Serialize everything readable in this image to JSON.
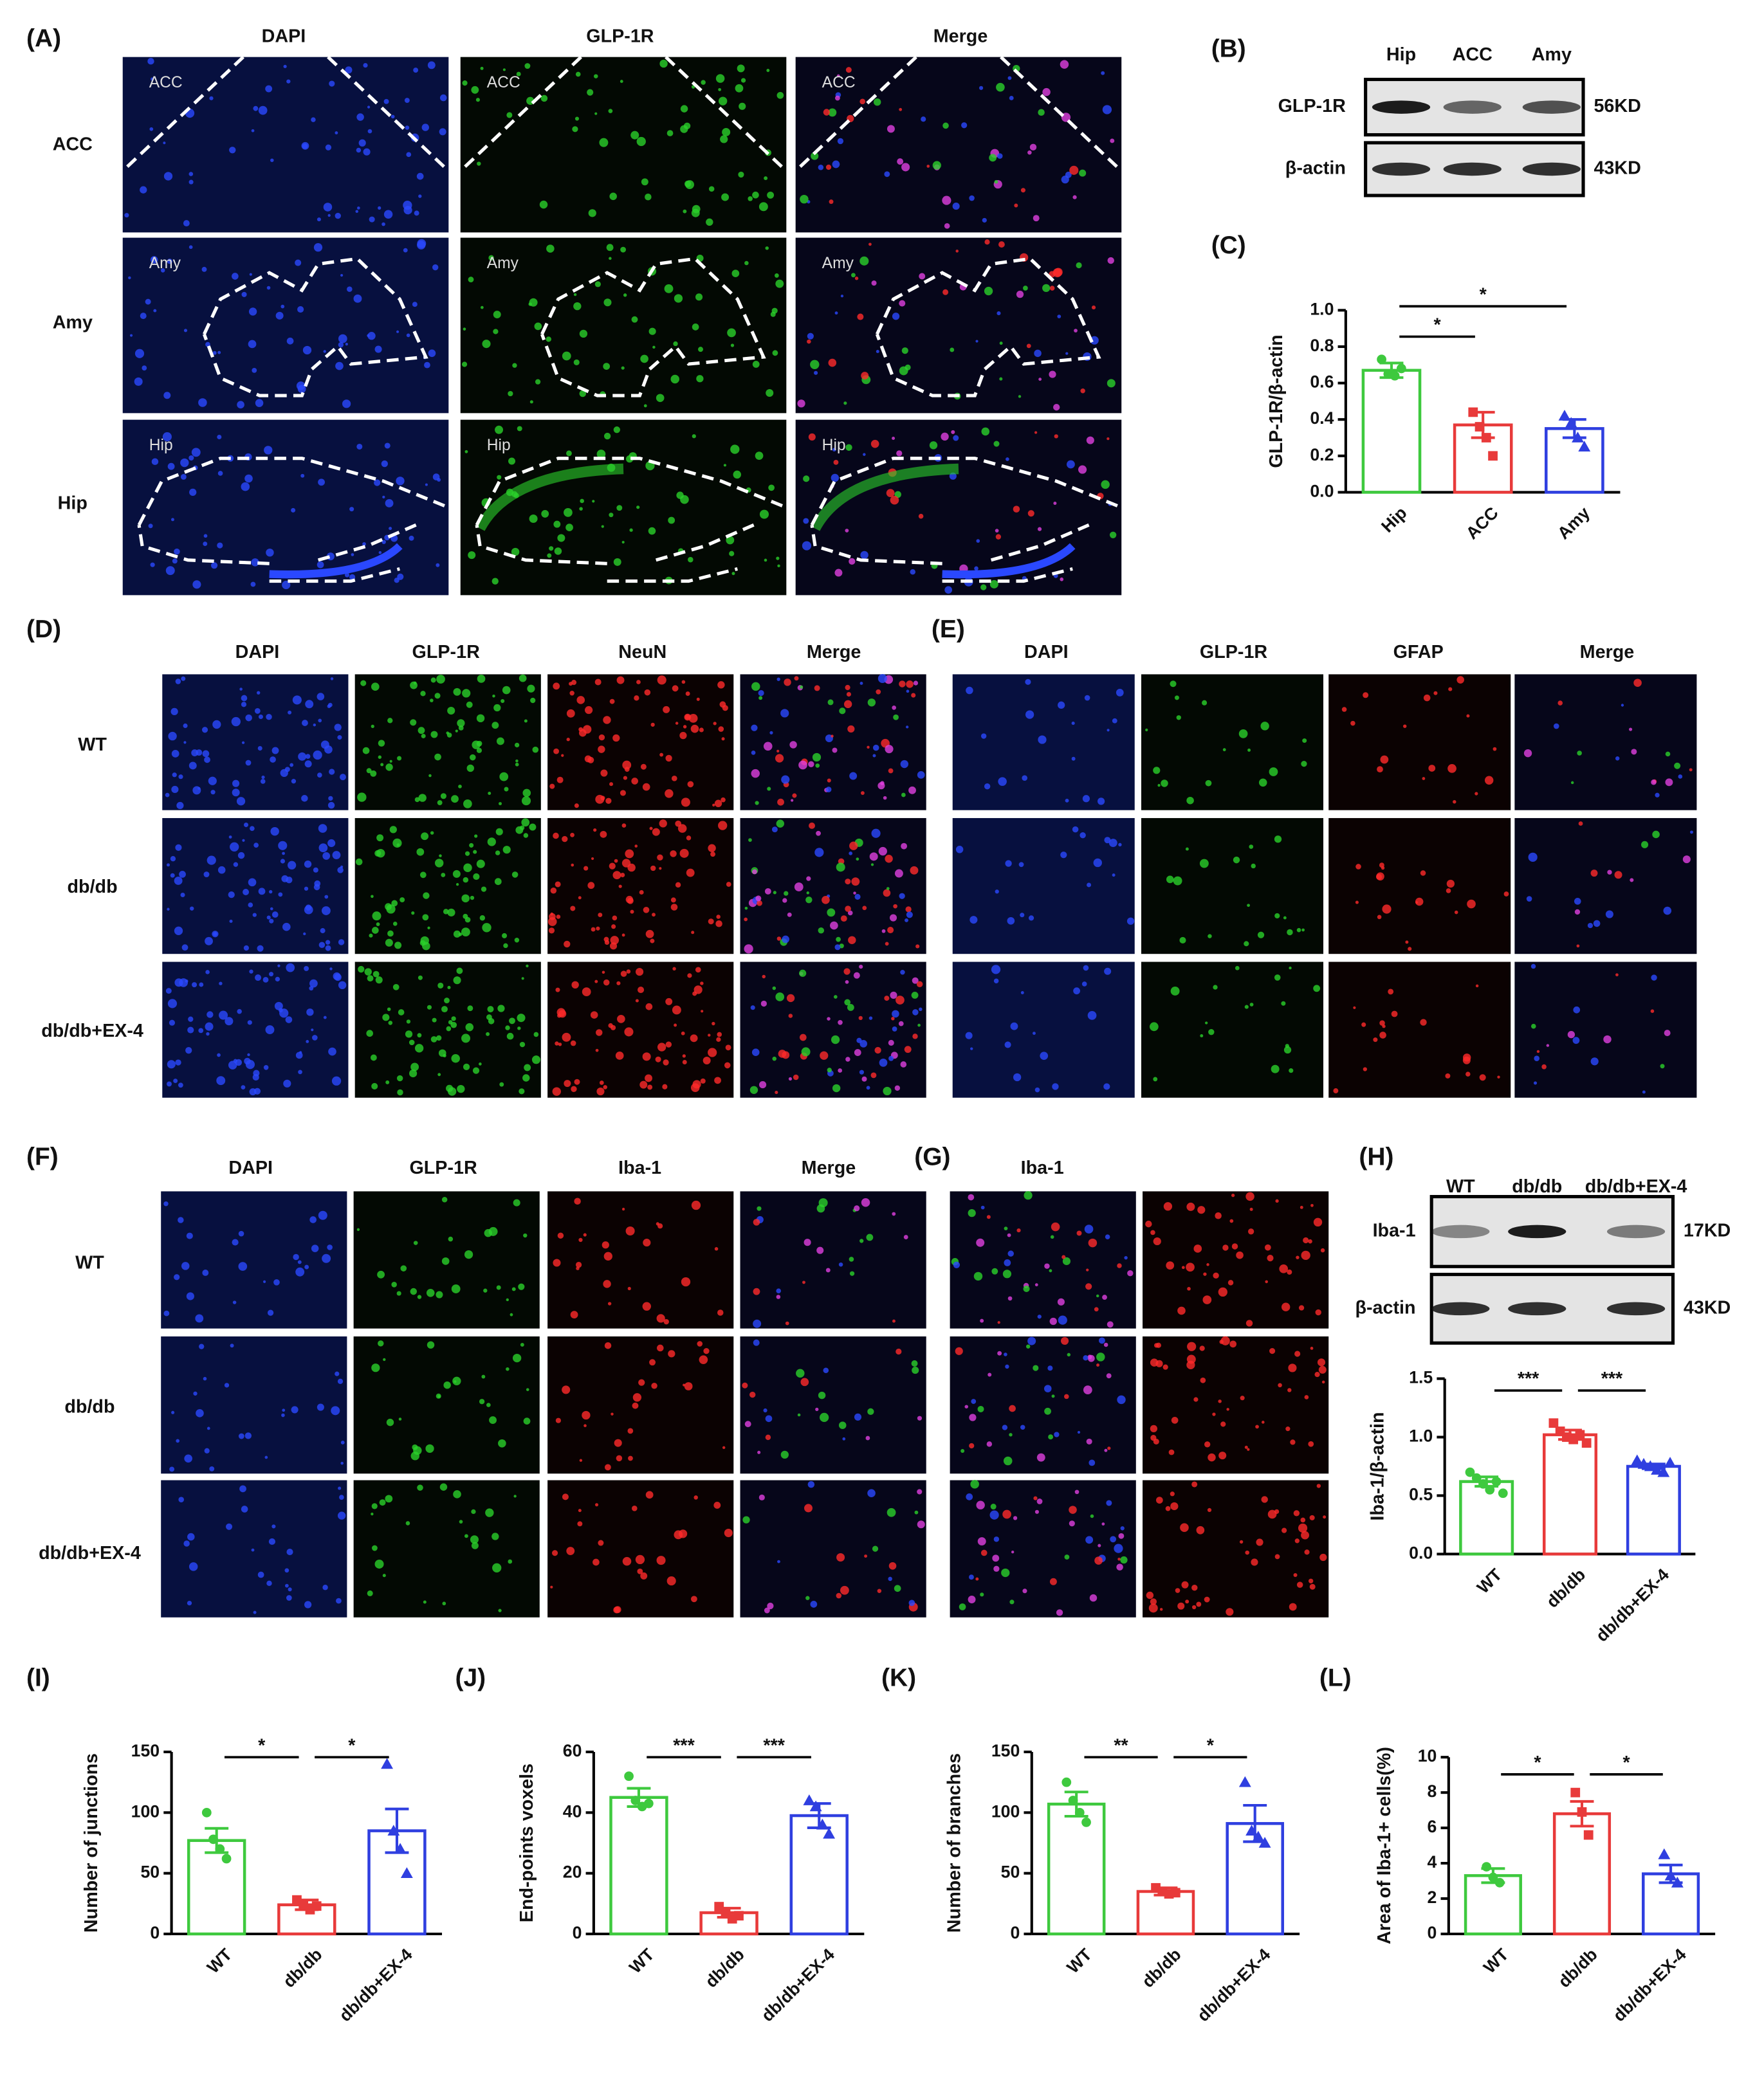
{
  "panel_labels": [
    "(A)",
    "(B)",
    "(C)",
    "(D)",
    "(E)",
    "(F)",
    "(G)",
    "(H)",
    "(I)",
    "(J)",
    "(K)",
    "(L)"
  ],
  "A": {
    "columns": [
      "DAPI",
      "GLP-1R",
      "Merge"
    ],
    "rows": [
      "ACC",
      "Amy",
      "Hip"
    ],
    "region_labels": [
      "ACC",
      "Amy",
      "Hip"
    ]
  },
  "B": {
    "lanes": [
      "Hip",
      "ACC",
      "Amy"
    ],
    "bands": [
      "GLP-1R",
      "β-actin"
    ],
    "sizes": [
      "56KD",
      "43KD"
    ]
  },
  "D": {
    "columns": [
      "DAPI",
      "GLP-1R",
      "NeuN",
      "Merge"
    ],
    "rows": [
      "WT",
      "db/db",
      "db/db+EX-4"
    ]
  },
  "E": {
    "columns": [
      "DAPI",
      "GLP-1R",
      "GFAP",
      "Merge"
    ]
  },
  "F": {
    "columns": [
      "DAPI",
      "GLP-1R",
      "Iba-1",
      "Merge"
    ],
    "rows": [
      "WT",
      "db/db",
      "db/db+EX-4"
    ]
  },
  "G": {
    "columns": [
      "Iba-1"
    ]
  },
  "H": {
    "lanes": [
      "WT",
      "db/db",
      "db/db+EX-4"
    ],
    "bands": [
      "Iba-1",
      "β-actin"
    ],
    "sizes": [
      "17KD",
      "43KD"
    ]
  },
  "chart_data": [
    {
      "type": "bar",
      "ylabel": "GLP-1R/β-actin",
      "categories": [
        "Hip",
        "ACC",
        "Amy"
      ],
      "values": [
        0.67,
        0.37,
        0.35
      ],
      "errors": [
        0.04,
        0.07,
        0.05
      ],
      "points": [
        [
          0.73,
          0.65,
          0.64,
          0.68
        ],
        [
          0.44,
          0.36,
          0.3,
          0.2
        ],
        [
          0.42,
          0.38,
          0.3,
          0.25
        ]
      ],
      "colors": [
        "#3ec93e",
        "#e83a3a",
        "#2f3fe0"
      ],
      "ylim": [
        0,
        1.0
      ],
      "yticks": [
        {
          "value": 0,
          "label": "0.0"
        },
        0.2,
        0.4,
        0.6,
        0.8,
        {
          "value": 1,
          "label": "1.0"
        }
      ],
      "annotations": [
        "*",
        "*"
      ]
    },
    {
      "type": "bar",
      "ylabel": "Iba-1/β-actin",
      "categories": [
        "WT",
        "db/db",
        "db/db+EX-4"
      ],
      "values": [
        0.62,
        1.02,
        0.75
      ],
      "errors": [
        0.04,
        0.04,
        0.02
      ],
      "points": [
        [
          0.7,
          0.65,
          0.6,
          0.55,
          0.62,
          0.52
        ],
        [
          1.12,
          1.05,
          1.0,
          0.98,
          1.02,
          0.95
        ],
        [
          0.8,
          0.77,
          0.75,
          0.72,
          0.7,
          0.78
        ]
      ],
      "colors": [
        "#3ec93e",
        "#e83a3a",
        "#2f3fe0"
      ],
      "ylim": [
        0,
        1.5
      ],
      "yticks": [
        {
          "value": 0,
          "label": "0.0"
        },
        0.5,
        {
          "value": 1,
          "label": "1.0"
        },
        1.5
      ],
      "annotations": [
        "***",
        "***"
      ]
    },
    {
      "type": "bar",
      "ylabel": "Number of junctions",
      "categories": [
        "WT",
        "db/db",
        "db/db+EX-4"
      ],
      "values": [
        77,
        24,
        85
      ],
      "errors": [
        10,
        4,
        18
      ],
      "points": [
        [
          100,
          78,
          70,
          62
        ],
        [
          28,
          24,
          20,
          23
        ],
        [
          140,
          85,
          70,
          50
        ]
      ],
      "colors": [
        "#3ec93e",
        "#e83a3a",
        "#2f3fe0"
      ],
      "ylim": [
        0,
        150
      ],
      "yticks": [
        0,
        50,
        100,
        150
      ],
      "annotations": [
        "*",
        "*"
      ]
    },
    {
      "type": "bar",
      "ylabel": "End-points voxels",
      "categories": [
        "WT",
        "db/db",
        "db/db+EX-4"
      ],
      "values": [
        45,
        7,
        39
      ],
      "errors": [
        3,
        1.5,
        4
      ],
      "points": [
        [
          52,
          44,
          42,
          43
        ],
        [
          9,
          7,
          5,
          6
        ],
        [
          44,
          42,
          36,
          33
        ]
      ],
      "colors": [
        "#3ec93e",
        "#e83a3a",
        "#2f3fe0"
      ],
      "ylim": [
        0,
        60
      ],
      "yticks": [
        0,
        20,
        40,
        60
      ],
      "annotations": [
        "***",
        "***"
      ]
    },
    {
      "type": "bar",
      "ylabel": "Number of branches",
      "categories": [
        "WT",
        "db/db",
        "db/db+EX-4"
      ],
      "values": [
        107,
        35,
        91
      ],
      "errors": [
        10,
        3,
        15
      ],
      "points": [
        [
          125,
          110,
          100,
          92
        ],
        [
          38,
          35,
          33,
          34
        ],
        [
          125,
          85,
          80,
          75
        ]
      ],
      "colors": [
        "#3ec93e",
        "#e83a3a",
        "#2f3fe0"
      ],
      "ylim": [
        0,
        150
      ],
      "yticks": [
        0,
        50,
        100,
        150
      ],
      "annotations": [
        "**",
        "*"
      ]
    },
    {
      "type": "bar",
      "ylabel": "Area of Iba-1+ cells(%)",
      "categories": [
        "WT",
        "db/db",
        "db/db+EX-4"
      ],
      "values": [
        3.3,
        6.8,
        3.4
      ],
      "errors": [
        0.4,
        0.7,
        0.5
      ],
      "points": [
        [
          3.8,
          3.2,
          2.9
        ],
        [
          8.0,
          6.9,
          5.6
        ],
        [
          4.5,
          3.3,
          2.9
        ]
      ],
      "colors": [
        "#3ec93e",
        "#e83a3a",
        "#2f3fe0"
      ],
      "ylim": [
        0,
        10
      ],
      "yticks": [
        0,
        2,
        4,
        6,
        8,
        10
      ],
      "annotations": [
        "*",
        "*"
      ]
    }
  ]
}
